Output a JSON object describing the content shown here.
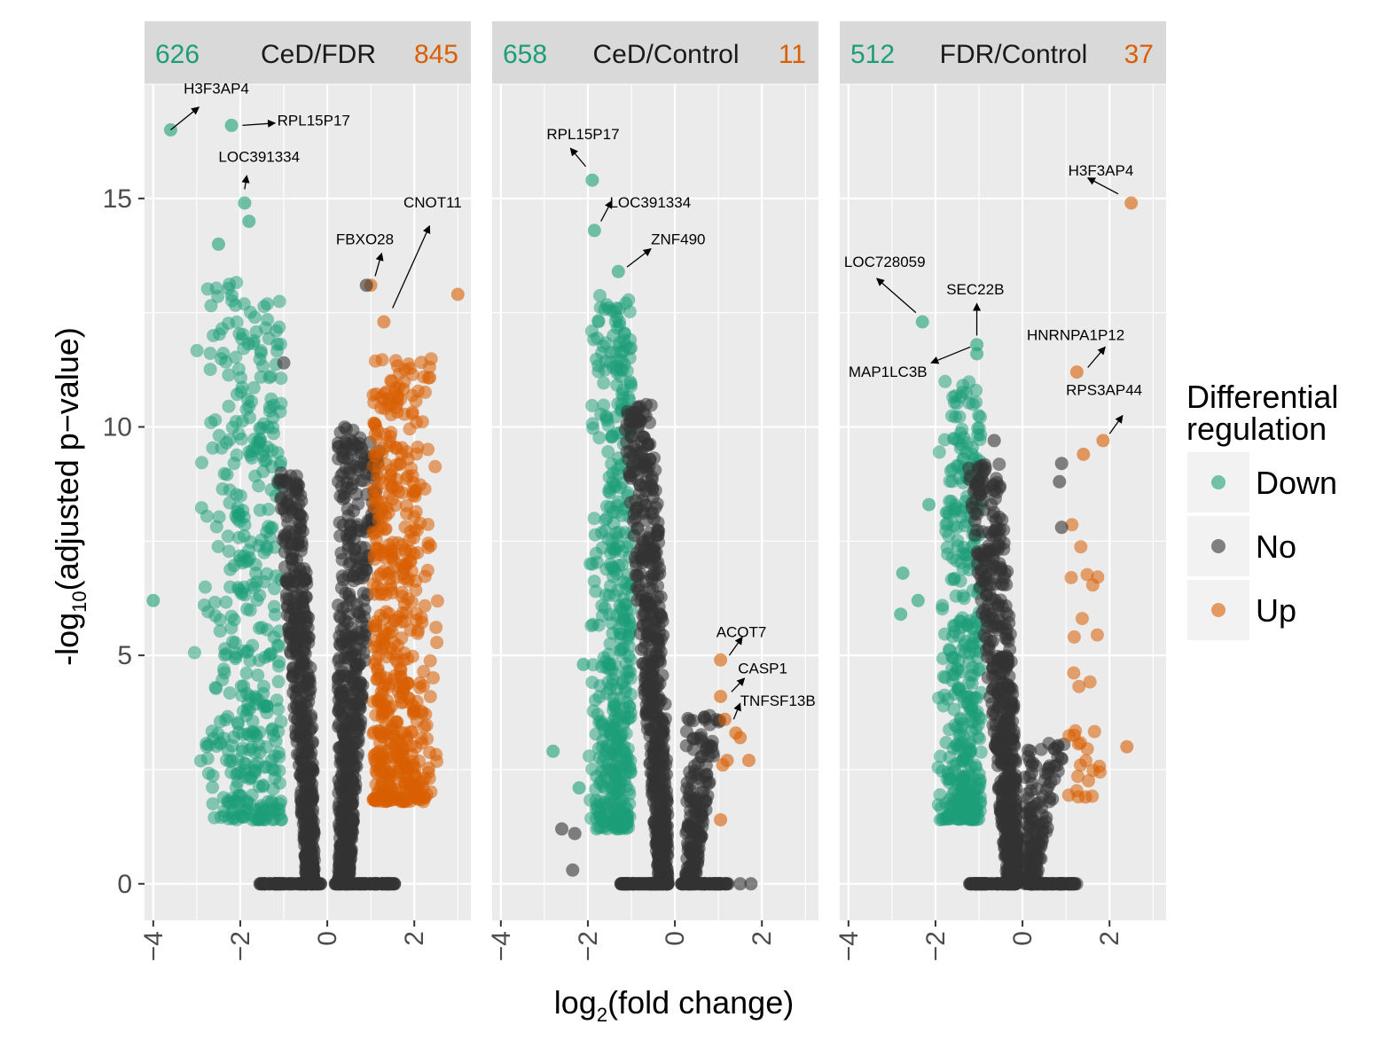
{
  "chart_data": {
    "type": "scatter",
    "xlabel_main": "log",
    "xlabel_sub": "2",
    "xlabel_rest": "(fold change)",
    "ylabel_pre": "-log",
    "ylabel_sub": "10",
    "ylabel_rest": "(adjusted p−value)",
    "xlim": [
      -4.2,
      3.3
    ],
    "ylim": [
      -0.8,
      17.5
    ],
    "x_ticks": [
      -4,
      -2,
      0,
      2
    ],
    "x_tick_labels": [
      "−4",
      "−2",
      "0",
      "2"
    ],
    "y_ticks": [
      0,
      5,
      10,
      15
    ],
    "y_tick_labels": [
      "0",
      "5",
      "10",
      "15"
    ],
    "legend": {
      "title_line1": "Differential",
      "title_line2": "regulation",
      "placement": "right",
      "entries": [
        {
          "label": "Down",
          "color": "#1b9e77"
        },
        {
          "label": "No",
          "color": "#333333"
        },
        {
          "label": "Up",
          "color": "#d95f02"
        }
      ]
    },
    "colors": {
      "Down": "#1b9e77",
      "No": "#333333",
      "Up": "#d95f02"
    },
    "panels": [
      {
        "title": "CeD/FDR",
        "down_count": "626",
        "up_count": "845",
        "highlight": [
          {
            "x": -3.6,
            "y": 16.5,
            "cat": "Down"
          },
          {
            "x": -2.2,
            "y": 16.6,
            "cat": "Down"
          },
          {
            "x": -1.9,
            "y": 14.9,
            "cat": "Down"
          },
          {
            "x": -1.8,
            "y": 14.5,
            "cat": "Down"
          },
          {
            "x": -2.5,
            "y": 14.0,
            "cat": "Down"
          },
          {
            "x": -4.0,
            "y": 6.2,
            "cat": "Down"
          },
          {
            "x": 1.0,
            "y": 13.1,
            "cat": "Up"
          },
          {
            "x": 1.3,
            "y": 12.3,
            "cat": "Up"
          },
          {
            "x": 3.0,
            "y": 12.9,
            "cat": "Up"
          },
          {
            "x": 0.9,
            "y": 13.1,
            "cat": "No"
          },
          {
            "x": -1.0,
            "y": 11.4,
            "cat": "No"
          }
        ],
        "clouds": [
          {
            "cat": "Down",
            "xmin": -3.1,
            "xmax": -1.05,
            "ymin": 1.4,
            "ymax": 13.2,
            "n": 420,
            "shape": "down"
          },
          {
            "cat": "No",
            "xmin": -1.15,
            "xmax": -0.25,
            "ymin": 0,
            "ymax": 9.0,
            "n": 520,
            "shape": "noleft"
          },
          {
            "cat": "No",
            "xmin": 0.25,
            "xmax": 1.25,
            "ymin": 0,
            "ymax": 10.0,
            "n": 560,
            "shape": "noright"
          },
          {
            "cat": "Up",
            "xmin": 1.05,
            "xmax": 2.6,
            "ymin": 1.8,
            "ymax": 11.5,
            "n": 520,
            "shape": "up"
          }
        ],
        "labels": [
          {
            "text": "H3F3AP4",
            "x": -3.3,
            "y": 17.3,
            "ax": -3.6,
            "ay": 16.5,
            "tx": -2.95,
            "ty": 17.0
          },
          {
            "text": "RPL15P17",
            "x": -1.15,
            "y": 16.6,
            "ax": -1.95,
            "ay": 16.6,
            "tx": -1.2,
            "ty": 16.65
          },
          {
            "text": "LOC391334",
            "x": -2.5,
            "y": 15.8,
            "ax": -1.9,
            "ay": 15.2,
            "tx": -1.85,
            "ty": 15.5
          },
          {
            "text": "FBXO28",
            "x": 0.2,
            "y": 14.0,
            "ax": 1.1,
            "ay": 13.3,
            "tx": 1.25,
            "ty": 13.8
          },
          {
            "text": "CNOT11",
            "x": 1.75,
            "y": 14.8,
            "ax": 1.5,
            "ay": 12.6,
            "tx": 2.35,
            "ty": 14.4
          }
        ]
      },
      {
        "title": "CeD/Control",
        "down_count": "658",
        "up_count": "11",
        "highlight": [
          {
            "x": -1.9,
            "y": 15.4,
            "cat": "Down"
          },
          {
            "x": -1.85,
            "y": 14.3,
            "cat": "Down"
          },
          {
            "x": -1.3,
            "y": 13.4,
            "cat": "Down"
          },
          {
            "x": -2.8,
            "y": 2.9,
            "cat": "Down"
          },
          {
            "x": -2.2,
            "y": 2.1,
            "cat": "Down"
          },
          {
            "x": -2.1,
            "y": 4.8,
            "cat": "Down"
          },
          {
            "x": 1.05,
            "y": 4.9,
            "cat": "Up"
          },
          {
            "x": 1.05,
            "y": 4.1,
            "cat": "Up"
          },
          {
            "x": 1.15,
            "y": 3.6,
            "cat": "Up"
          },
          {
            "x": 1.4,
            "y": 3.3,
            "cat": "Up"
          },
          {
            "x": 1.5,
            "y": 3.2,
            "cat": "Up"
          },
          {
            "x": 1.1,
            "y": 2.6,
            "cat": "Up"
          },
          {
            "x": 1.7,
            "y": 2.7,
            "cat": "Up"
          },
          {
            "x": 1.2,
            "y": 2.7,
            "cat": "Up"
          },
          {
            "x": 1.05,
            "y": 1.4,
            "cat": "Up"
          },
          {
            "x": -2.6,
            "y": 1.2,
            "cat": "No"
          },
          {
            "x": -2.3,
            "y": 1.1,
            "cat": "No"
          },
          {
            "x": -2.35,
            "y": 0.3,
            "cat": "No"
          },
          {
            "x": 1.5,
            "y": 0,
            "cat": "No"
          },
          {
            "x": 1.75,
            "y": 0,
            "cat": "No"
          }
        ],
        "clouds": [
          {
            "cat": "Down",
            "xmin": -2.0,
            "xmax": -1.0,
            "ymin": 1.2,
            "ymax": 12.9,
            "n": 460,
            "shape": "down"
          },
          {
            "cat": "No",
            "xmin": -1.2,
            "xmax": -0.1,
            "ymin": 0,
            "ymax": 10.5,
            "n": 600,
            "shape": "noleft"
          },
          {
            "cat": "No",
            "xmin": 0.25,
            "xmax": 1.05,
            "ymin": 0,
            "ymax": 3.7,
            "n": 180,
            "shape": "noright"
          }
        ],
        "labels": [
          {
            "text": "RPL15P17",
            "x": -2.95,
            "y": 16.3,
            "ax": -2.05,
            "ay": 15.7,
            "tx": -2.4,
            "ty": 16.1
          },
          {
            "text": "LOC391334",
            "x": -1.5,
            "y": 14.8,
            "ax": -1.7,
            "ay": 14.5,
            "tx": -1.45,
            "ty": 14.95
          },
          {
            "text": "ZNF490",
            "x": -0.55,
            "y": 14.0,
            "ax": -1.1,
            "ay": 13.5,
            "tx": -0.55,
            "ty": 13.9
          },
          {
            "text": "ACOT7",
            "x": 0.95,
            "y": 5.4,
            "ax": 1.25,
            "ay": 5.0,
            "tx": 1.55,
            "ty": 5.4
          },
          {
            "text": "CASP1",
            "x": 1.45,
            "y": 4.6,
            "ax": 1.3,
            "ay": 4.2,
            "tx": 1.6,
            "ty": 4.5
          },
          {
            "text": "TNFSF13B",
            "x": 1.5,
            "y": 3.9,
            "ax": 1.35,
            "ay": 3.6,
            "tx": 1.5,
            "ty": 3.95
          }
        ]
      },
      {
        "title": "FDR/Control",
        "down_count": "512",
        "up_count": "37",
        "highlight": [
          {
            "x": -2.3,
            "y": 12.3,
            "cat": "Down"
          },
          {
            "x": -1.05,
            "y": 11.8,
            "cat": "Down"
          },
          {
            "x": -1.05,
            "y": 11.6,
            "cat": "Down"
          },
          {
            "x": -2.75,
            "y": 6.8,
            "cat": "Down"
          },
          {
            "x": -2.4,
            "y": 6.2,
            "cat": "Down"
          },
          {
            "x": -2.15,
            "y": 8.3,
            "cat": "Down"
          },
          {
            "x": -2.8,
            "y": 5.9,
            "cat": "Down"
          },
          {
            "x": 2.5,
            "y": 14.9,
            "cat": "Up"
          },
          {
            "x": 1.25,
            "y": 11.2,
            "cat": "Up"
          },
          {
            "x": 1.85,
            "y": 9.7,
            "cat": "Up"
          },
          {
            "x": 1.4,
            "y": 9.4,
            "cat": "Up"
          },
          {
            "x": 2.4,
            "y": 3.0,
            "cat": "Up"
          },
          {
            "x": 1.45,
            "y": 1.9,
            "cat": "Up"
          },
          {
            "x": 0.9,
            "y": 9.2,
            "cat": "No"
          },
          {
            "x": 0.85,
            "y": 8.8,
            "cat": "No"
          },
          {
            "x": 0.9,
            "y": 7.8,
            "cat": "No"
          },
          {
            "x": -0.65,
            "y": 9.7,
            "cat": "No"
          }
        ],
        "clouds": [
          {
            "cat": "Down",
            "xmin": -2.0,
            "xmax": -0.95,
            "ymin": 1.4,
            "ymax": 11.0,
            "n": 380,
            "shape": "down"
          },
          {
            "cat": "No",
            "xmin": -1.25,
            "xmax": -0.05,
            "ymin": 0,
            "ymax": 9.2,
            "n": 600,
            "shape": "noleft"
          },
          {
            "cat": "No",
            "xmin": 0.05,
            "xmax": 1.05,
            "ymin": 0,
            "ymax": 3.2,
            "n": 160,
            "shape": "noright"
          },
          {
            "cat": "Up",
            "xmin": 1.05,
            "xmax": 1.8,
            "ymin": 1.9,
            "ymax": 7.9,
            "n": 30,
            "shape": "upsparse"
          }
        ],
        "labels": [
          {
            "text": "H3F3AP4",
            "x": 1.05,
            "y": 15.5,
            "ax": 2.2,
            "ay": 15.1,
            "tx": 1.5,
            "ty": 15.45
          },
          {
            "text": "LOC728059",
            "x": -4.1,
            "y": 13.5,
            "ax": -2.45,
            "ay": 12.5,
            "tx": -3.35,
            "ty": 13.25
          },
          {
            "text": "SEC22B",
            "x": -1.75,
            "y": 12.9,
            "ax": -1.05,
            "ay": 12.0,
            "tx": -1.05,
            "ty": 12.7
          },
          {
            "text": "MAP1LC3B",
            "x": -4.0,
            "y": 11.1,
            "ax": -1.2,
            "ay": 11.75,
            "tx": -2.1,
            "ty": 11.4
          },
          {
            "text": "HNRNPA1P12",
            "x": 0.1,
            "y": 11.9,
            "ax": 1.5,
            "ay": 11.3,
            "tx": 1.9,
            "ty": 11.75
          },
          {
            "text": "RPS3AP44",
            "x": 1.0,
            "y": 10.7,
            "ax": 2.0,
            "ay": 9.85,
            "tx": 2.3,
            "ty": 10.25
          }
        ]
      }
    ]
  }
}
